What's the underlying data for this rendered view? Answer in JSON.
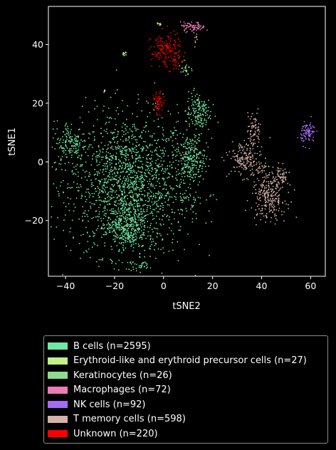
{
  "chart_data": {
    "type": "scatter",
    "xlabel": "tSNE2",
    "ylabel": "tSNE1",
    "xlim": [
      -47,
      66
    ],
    "ylim": [
      -39,
      53
    ],
    "xticks": [
      -40,
      -20,
      0,
      20,
      40,
      60
    ],
    "yticks": [
      -20,
      0,
      20,
      40
    ],
    "xtick_labels": [
      "−40",
      "−20",
      "0",
      "20",
      "40",
      "60"
    ],
    "ytick_labels": [
      "−20",
      "0",
      "20",
      "40"
    ],
    "grid": false,
    "legend_position": "below",
    "series": [
      {
        "name": "B cells (n=2595)",
        "color": "#6ee8a2",
        "clusters": [
          {
            "cx": -14,
            "cy": -8,
            "sx": 12,
            "sy": 12,
            "n": 1700
          },
          {
            "cx": -38,
            "cy": 6,
            "sx": 3.5,
            "sy": 4,
            "n": 160
          },
          {
            "cx": 11,
            "cy": 1,
            "sx": 3,
            "sy": 4,
            "n": 230
          },
          {
            "cx": 14,
            "cy": 17,
            "sx": 2.5,
            "sy": 3.5,
            "n": 160
          },
          {
            "cx": -15,
            "cy": -22,
            "sx": 4,
            "sy": 4,
            "n": 300
          },
          {
            "cx": -9,
            "cy": -35,
            "sx": 1.5,
            "sy": 1,
            "n": 25
          },
          {
            "cx": 10,
            "cy": -14,
            "sx": 2,
            "sy": 2,
            "n": 20
          }
        ]
      },
      {
        "name": "Erythroid-like and erythroid precursor cells (n=27)",
        "color": "#c2f08a",
        "clusters": [
          {
            "cx": -16,
            "cy": 37,
            "sx": 0.4,
            "sy": 0.4,
            "n": 14
          },
          {
            "cx": -2,
            "cy": 47,
            "sx": 0.6,
            "sy": 0.6,
            "n": 8
          },
          {
            "cx": -24,
            "cy": 24,
            "sx": 0.6,
            "sy": 0.4,
            "n": 5
          }
        ]
      },
      {
        "name": "Keratinocytes (n=26)",
        "color": "#8fdc8f",
        "clusters": [
          {
            "cx": 9,
            "cy": 32,
            "sx": 1,
            "sy": 1.5,
            "n": 26
          }
        ]
      },
      {
        "name": "Macrophages (n=72)",
        "color": "#ec7bb7",
        "clusters": [
          {
            "cx": 12,
            "cy": 46,
            "sx": 2.5,
            "sy": 0.8,
            "n": 72
          }
        ]
      },
      {
        "name": "NK cells (n=92)",
        "color": "#a56cf2",
        "clusters": [
          {
            "cx": 59,
            "cy": 10,
            "sx": 1.5,
            "sy": 2,
            "n": 92
          }
        ]
      },
      {
        "name": "T memory cells (n=598)",
        "color": "#d3b2a9",
        "clusters": [
          {
            "cx": 43,
            "cy": -12,
            "sx": 3.5,
            "sy": 4,
            "n": 260
          },
          {
            "cx": 33,
            "cy": 1,
            "sx": 3,
            "sy": 3,
            "n": 170
          },
          {
            "cx": 37,
            "cy": 11,
            "sx": 1.5,
            "sy": 3,
            "n": 70
          },
          {
            "cx": 48,
            "cy": -5,
            "sx": 1.5,
            "sy": 2,
            "n": 60
          },
          {
            "cx": 13,
            "cy": 42,
            "sx": 0.6,
            "sy": 1,
            "n": 8
          },
          {
            "cx": 39,
            "cy": -3,
            "sx": 2,
            "sy": 2,
            "n": 30
          }
        ]
      },
      {
        "name": "Unknown (n=220)",
        "color": "#ff0000",
        "clusters": [
          {
            "cx": 1,
            "cy": 38,
            "sx": 3,
            "sy": 3,
            "n": 150
          },
          {
            "cx": -2,
            "cy": 20,
            "sx": 1,
            "sy": 1.8,
            "n": 55
          },
          {
            "cx": 5,
            "cy": 34,
            "sx": 1,
            "sy": 1.2,
            "n": 15
          }
        ]
      }
    ]
  }
}
